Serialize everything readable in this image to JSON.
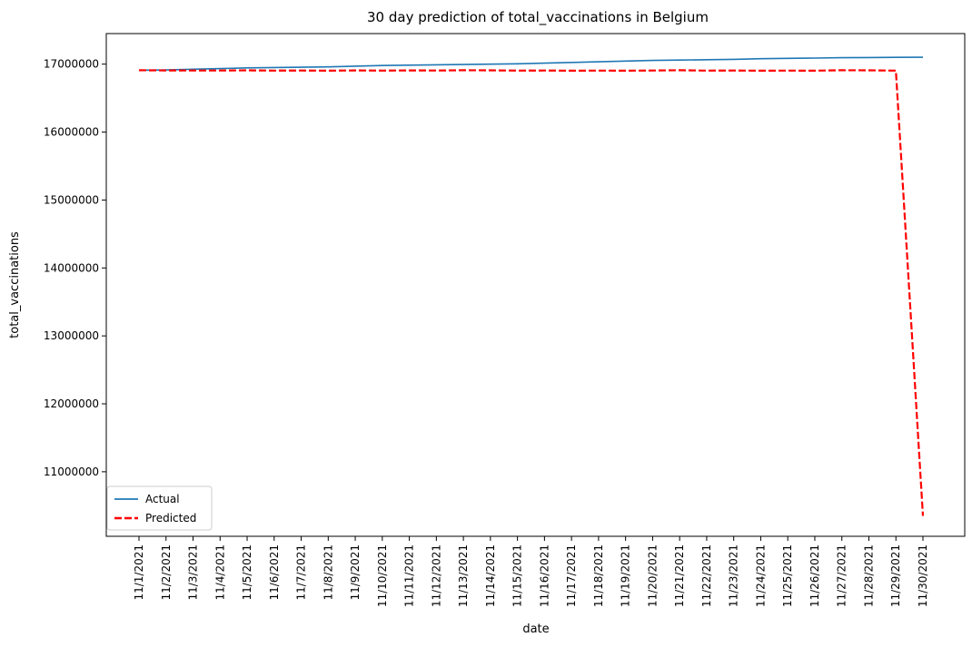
{
  "chart_data": {
    "type": "line",
    "title": "30 day prediction of total_vaccinations in Belgium",
    "xlabel": "date",
    "ylabel": "total_vaccinations",
    "x": [
      "11/1/2021",
      "11/2/2021",
      "11/3/2021",
      "11/4/2021",
      "11/5/2021",
      "11/6/2021",
      "11/7/2021",
      "11/8/2021",
      "11/9/2021",
      "11/10/2021",
      "11/11/2021",
      "11/12/2021",
      "11/13/2021",
      "11/14/2021",
      "11/15/2021",
      "11/16/2021",
      "11/17/2021",
      "11/18/2021",
      "11/19/2021",
      "11/20/2021",
      "11/21/2021",
      "11/22/2021",
      "11/23/2021",
      "11/24/2021",
      "11/25/2021",
      "11/26/2021",
      "11/27/2021",
      "11/28/2021",
      "11/29/2021",
      "11/30/2021"
    ],
    "yticks": [
      11000000,
      12000000,
      13000000,
      14000000,
      15000000,
      16000000,
      17000000
    ],
    "ylim": [
      10050000,
      17450000
    ],
    "grid": false,
    "legend_position": "lower-left",
    "series": [
      {
        "name": "Actual",
        "color": "#1f77b4",
        "style": "solid",
        "values": [
          16910000,
          16915000,
          16925000,
          16935000,
          16945000,
          16950000,
          16955000,
          16960000,
          16970000,
          16980000,
          16985000,
          16990000,
          16995000,
          17000000,
          17005000,
          17015000,
          17025000,
          17035000,
          17045000,
          17055000,
          17060000,
          17065000,
          17070000,
          17080000,
          17085000,
          17090000,
          17095000,
          17098000,
          17100000,
          17102000
        ]
      },
      {
        "name": "Predicted",
        "color": "#ff0000",
        "style": "dashed",
        "values": [
          16910000,
          16908000,
          16907000,
          16906000,
          16909000,
          16905000,
          16907000,
          16904000,
          16908000,
          16905000,
          16908000,
          16906000,
          16910000,
          16909000,
          16905000,
          16906000,
          16904000,
          16905000,
          16904000,
          16907000,
          16910000,
          16905000,
          16906000,
          16904000,
          16905000,
          16904000,
          16910000,
          16909000,
          16905000,
          10350000
        ]
      }
    ]
  }
}
